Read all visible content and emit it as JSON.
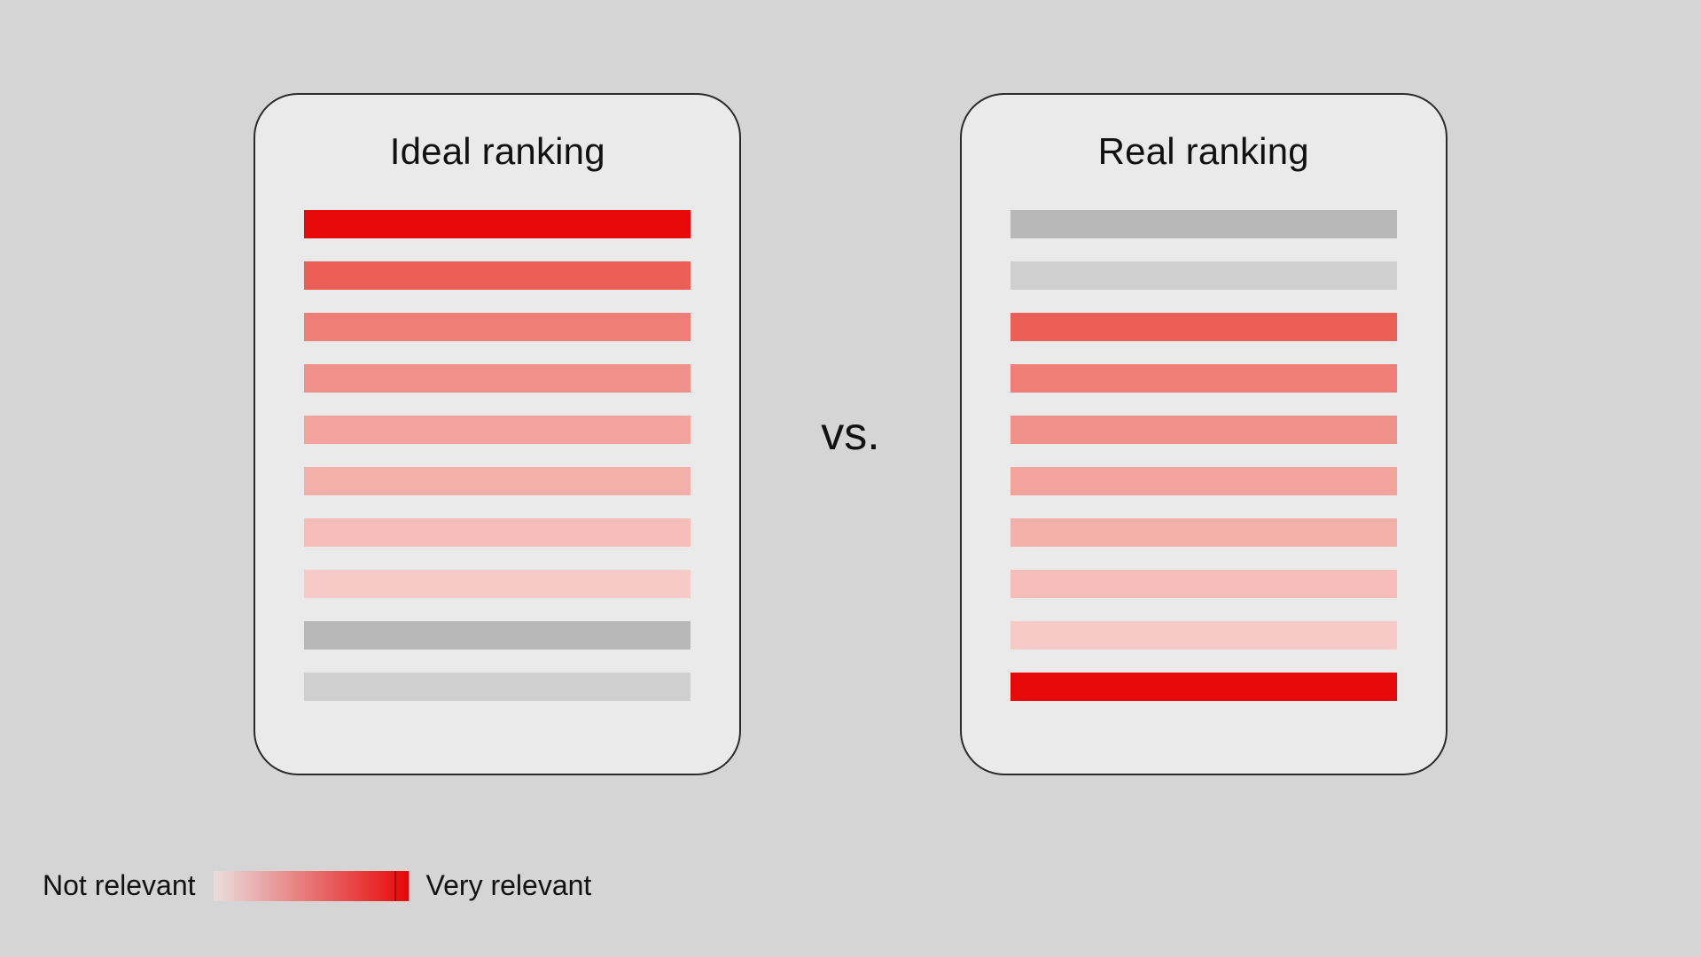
{
  "background_color": "#d5d5d5",
  "card_bg": "#eaeaea",
  "card_border": "#2a2a2a",
  "vs_text": "vs.",
  "legend": {
    "left_label": "Not relevant",
    "right_label": "Very relevant",
    "grad_start": "#eadede",
    "grad_end": "#e70808",
    "tick_color": "#a00000"
  },
  "panels": {
    "ideal": {
      "title": "Ideal ranking",
      "bars": [
        {
          "color": "#e70808"
        },
        {
          "color": "#ec5f56"
        },
        {
          "color": "#ef7f76"
        },
        {
          "color": "#f0918a"
        },
        {
          "color": "#f3a29c"
        },
        {
          "color": "#f3afa9"
        },
        {
          "color": "#f6bdb9"
        },
        {
          "color": "#f6cac7"
        },
        {
          "color": "#b8b8b8"
        },
        {
          "color": "#cfcfcf"
        }
      ]
    },
    "real": {
      "title": "Real ranking",
      "bars": [
        {
          "color": "#b8b8b8"
        },
        {
          "color": "#cfcfcf"
        },
        {
          "color": "#ec5f56"
        },
        {
          "color": "#ef7f76"
        },
        {
          "color": "#f0918a"
        },
        {
          "color": "#f3a29c"
        },
        {
          "color": "#f3afa9"
        },
        {
          "color": "#f6bdb9"
        },
        {
          "color": "#f6cac7"
        },
        {
          "color": "#e70808"
        }
      ]
    }
  }
}
